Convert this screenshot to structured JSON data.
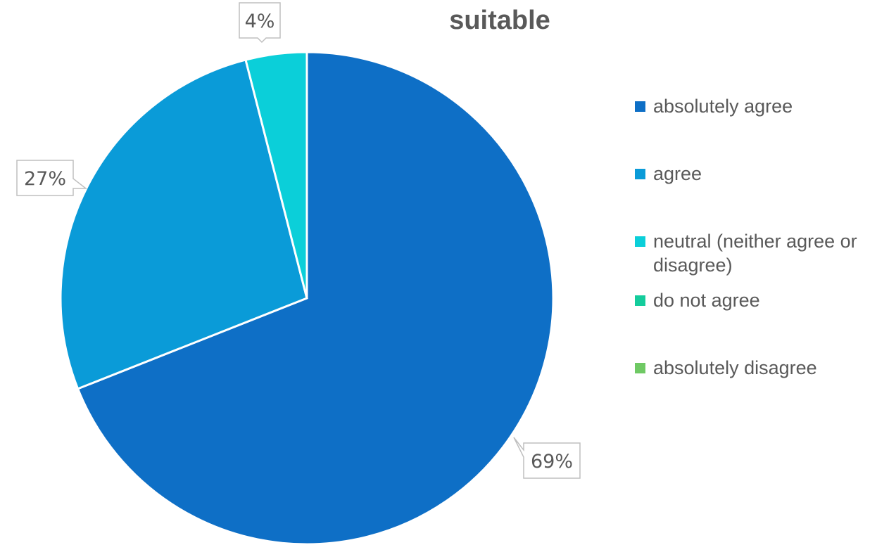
{
  "chart_data": {
    "type": "pie",
    "title": "suitable",
    "categories": [
      "absolutely agree",
      "agree",
      "neutral (neither agree or disagree)",
      "do not agree",
      "absolutely disagree"
    ],
    "values": [
      69,
      27,
      4,
      0,
      0
    ],
    "data_labels": [
      "69%",
      "27%",
      "4%",
      "",
      ""
    ],
    "colors": [
      "#0E6FC6",
      "#0A9BD8",
      "#0BCFD9",
      "#14CC9C",
      "#6FC964"
    ],
    "legend_position": "right",
    "legend": [
      {
        "label": "absolutely agree",
        "color": "#0E6FC6"
      },
      {
        "label": "agree",
        "color": "#0A9BD8"
      },
      {
        "label": "neutral (neither agree or disagree)",
        "color": "#0BCFD9"
      },
      {
        "label": "do not agree",
        "color": "#14CC9C"
      },
      {
        "label": "absolutely disagree",
        "color": "#6FC964"
      }
    ]
  }
}
